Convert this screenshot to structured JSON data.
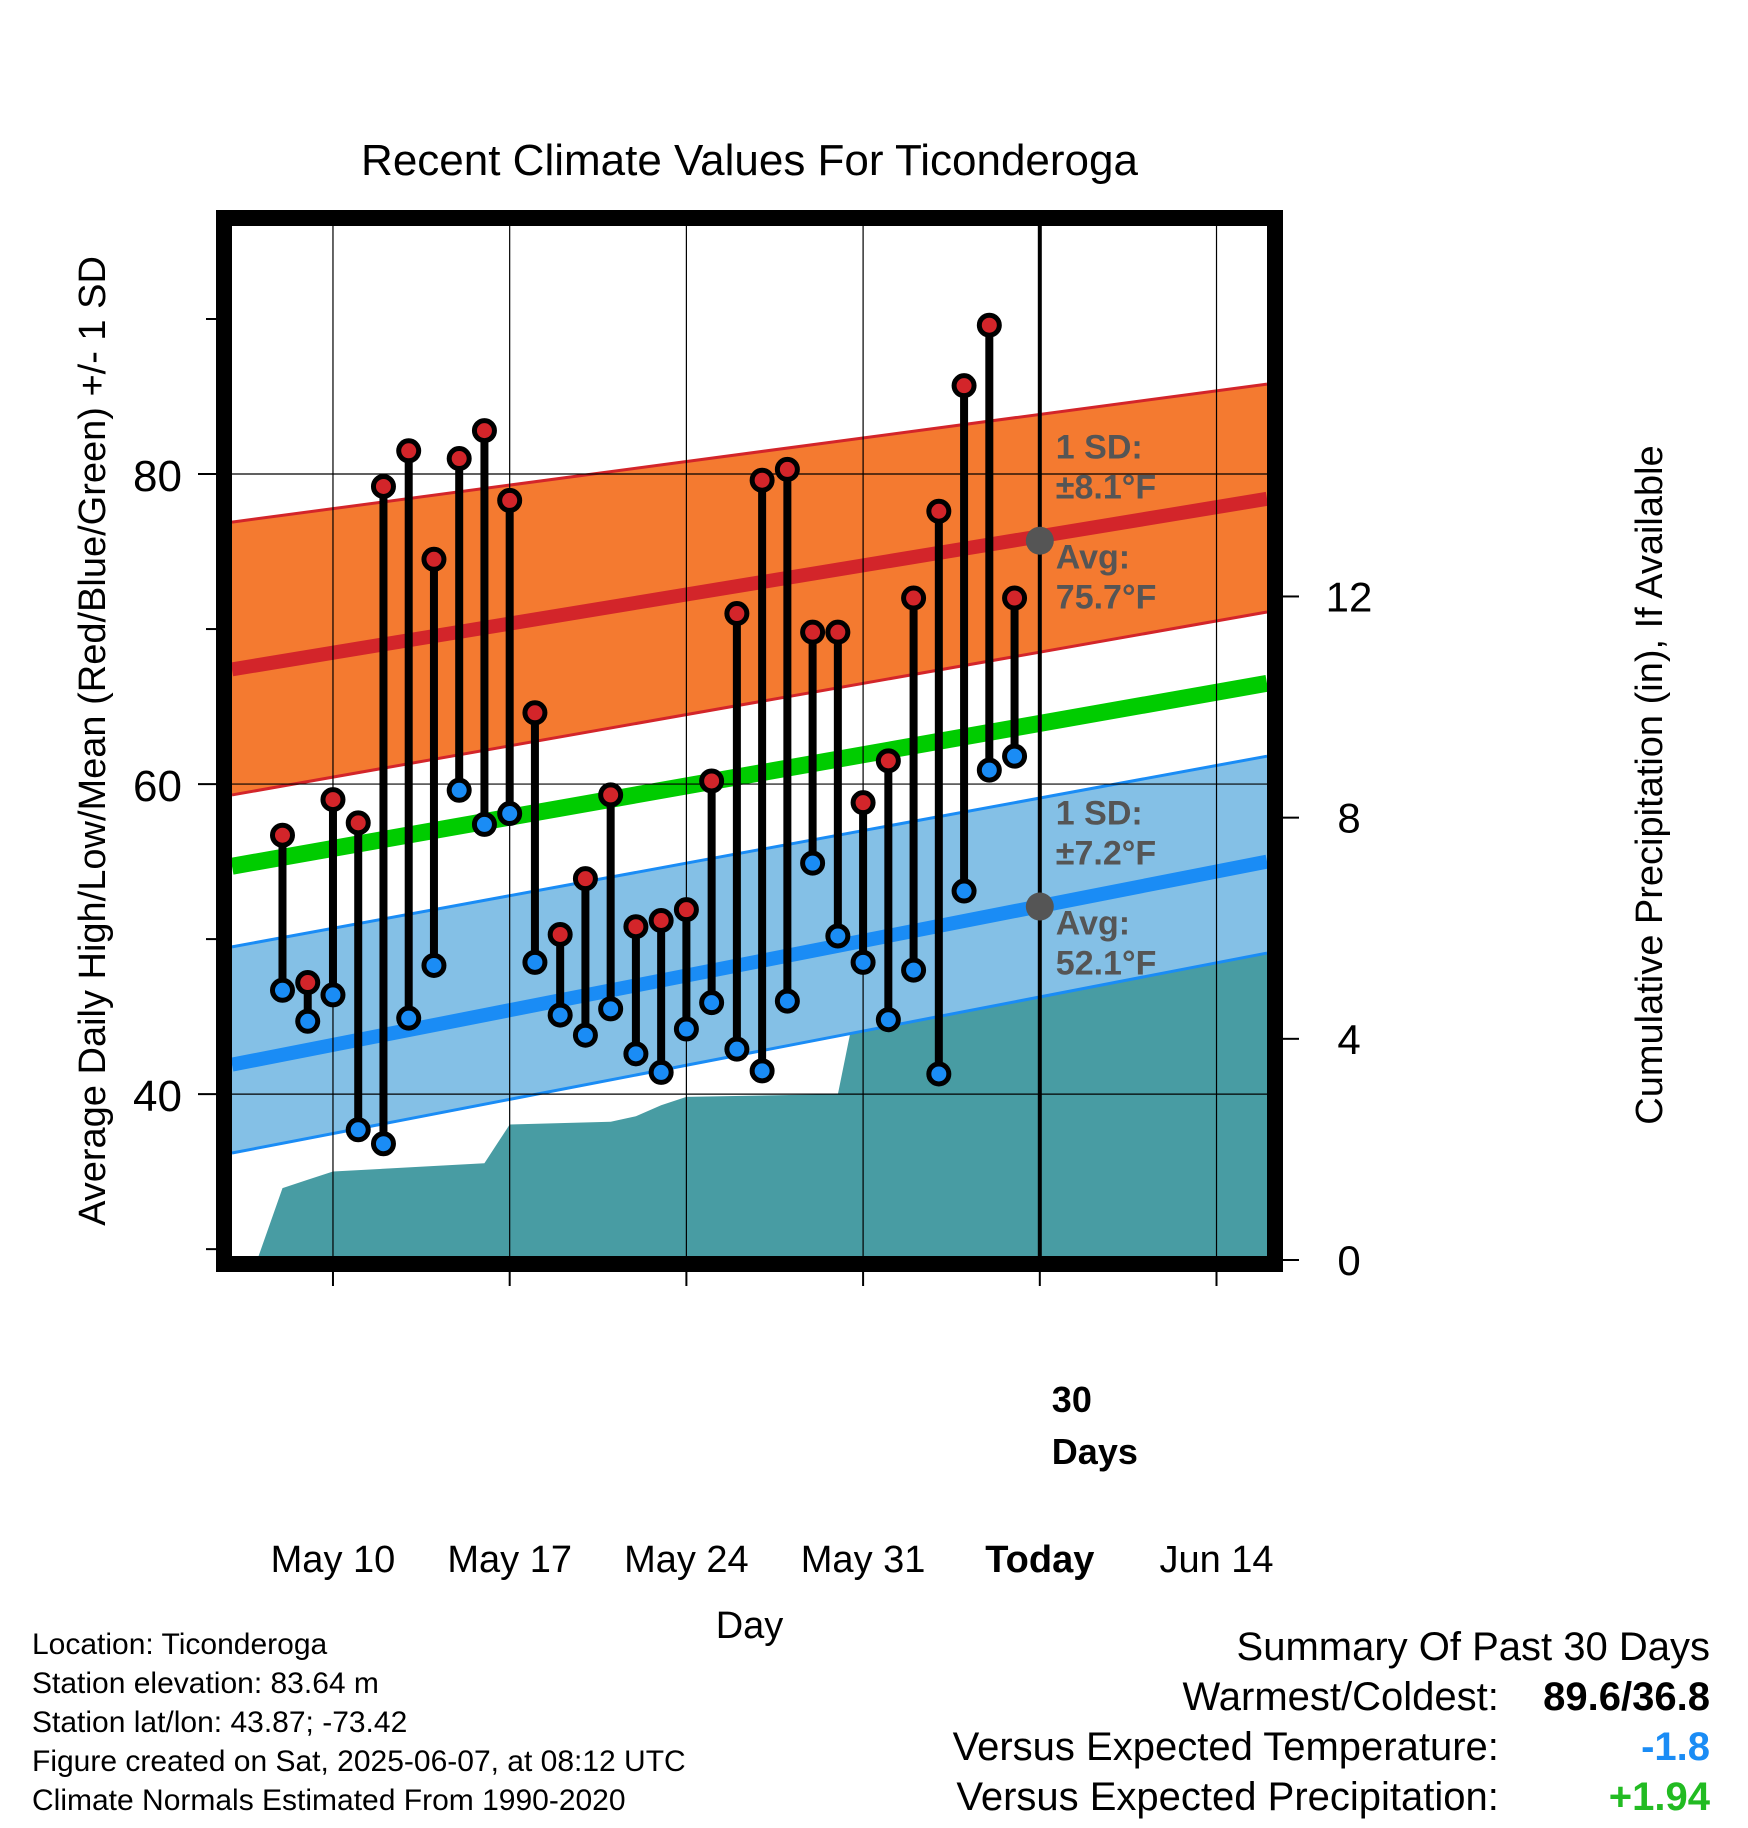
{
  "chart_data": {
    "type": "line",
    "title": "Recent Climate Values For Ticonderoga",
    "xlabel": "Day",
    "ylabel": "Average Daily High/Low/Mean (Red/Blue/Green) +/- 1 SD",
    "y2label": "Cumulative Precipitation (in), If Available",
    "x_range": [
      "2025-05-06",
      "2025-06-16"
    ],
    "x_ticks": [
      {
        "date": "2025-05-10",
        "label": "May 10",
        "bold": false
      },
      {
        "date": "2025-05-17",
        "label": "May 17",
        "bold": false
      },
      {
        "date": "2025-05-24",
        "label": "May 24",
        "bold": false
      },
      {
        "date": "2025-05-31",
        "label": "May 31",
        "bold": false
      },
      {
        "date": "2025-06-07",
        "label": "Today",
        "bold": true
      },
      {
        "date": "2025-06-14",
        "label": "Jun 14",
        "bold": false
      }
    ],
    "ylim": [
      29.3,
      96
    ],
    "y_ticks": [
      40,
      60,
      80
    ],
    "y2lim": [
      0,
      18.7
    ],
    "y2_ticks": [
      0,
      4,
      8,
      12
    ],
    "grid": true,
    "today": "2025-06-07",
    "today_label": "30 Days",
    "normals": {
      "dates": [
        "2025-05-06",
        "2025-06-16"
      ],
      "avg_high": [
        67.4,
        78.4
      ],
      "high_sd_upper": [
        76.9,
        85.8
      ],
      "high_sd_lower": [
        59.3,
        71.1
      ],
      "avg_mean": [
        54.7,
        66.5
      ],
      "avg_low": [
        41.9,
        55.0
      ],
      "low_sd_upper": [
        49.5,
        61.8
      ],
      "low_sd_lower": [
        36.2,
        49.1
      ]
    },
    "annotations": {
      "high_sd": "1 SD:\n±8.1°F",
      "high_avg": "Avg:\n75.7°F",
      "low_sd": "1 SD:\n±7.2°F",
      "low_avg": "Avg:\n52.1°F",
      "today_high_avg": 75.7,
      "today_low_avg": 52.1
    },
    "series": [
      {
        "name": "High",
        "dates": [
          "2025-05-08",
          "2025-05-09",
          "2025-05-10",
          "2025-05-11",
          "2025-05-12",
          "2025-05-13",
          "2025-05-14",
          "2025-05-15",
          "2025-05-16",
          "2025-05-17",
          "2025-05-18",
          "2025-05-19",
          "2025-05-20",
          "2025-05-21",
          "2025-05-22",
          "2025-05-23",
          "2025-05-24",
          "2025-05-25",
          "2025-05-26",
          "2025-05-27",
          "2025-05-28",
          "2025-05-29",
          "2025-05-30",
          "2025-05-31",
          "2025-06-01",
          "2025-06-02",
          "2025-06-03",
          "2025-06-04",
          "2025-06-05",
          "2025-06-06"
        ],
        "values": [
          56.7,
          47.2,
          59.0,
          57.5,
          79.2,
          81.5,
          74.5,
          81.0,
          82.8,
          78.3,
          64.6,
          50.3,
          53.9,
          59.3,
          50.8,
          51.2,
          51.9,
          60.2,
          71.0,
          79.6,
          80.3,
          69.8,
          69.8,
          58.8,
          61.5,
          72.0,
          77.6,
          85.7,
          89.6,
          72.0
        ]
      },
      {
        "name": "Low",
        "dates": [
          "2025-05-08",
          "2025-05-09",
          "2025-05-10",
          "2025-05-11",
          "2025-05-12",
          "2025-05-13",
          "2025-05-14",
          "2025-05-15",
          "2025-05-16",
          "2025-05-17",
          "2025-05-18",
          "2025-05-19",
          "2025-05-20",
          "2025-05-21",
          "2025-05-22",
          "2025-05-23",
          "2025-05-24",
          "2025-05-25",
          "2025-05-26",
          "2025-05-27",
          "2025-05-28",
          "2025-05-29",
          "2025-05-30",
          "2025-05-31",
          "2025-06-01",
          "2025-06-02",
          "2025-06-03",
          "2025-06-04",
          "2025-06-05",
          "2025-06-06"
        ],
        "values": [
          46.7,
          44.7,
          46.4,
          37.7,
          36.8,
          44.9,
          48.3,
          59.6,
          57.4,
          58.1,
          48.5,
          45.1,
          43.8,
          45.5,
          42.6,
          41.4,
          44.2,
          45.9,
          42.9,
          41.5,
          46.0,
          54.9,
          50.2,
          48.5,
          44.8,
          48.0,
          41.3,
          53.1,
          60.9,
          61.8
        ]
      },
      {
        "name": "Cumulative Precipitation",
        "axis": "y2",
        "dates": [
          "2025-05-07",
          "2025-05-08",
          "2025-05-09",
          "2025-05-10",
          "2025-05-16",
          "2025-05-17",
          "2025-05-21",
          "2025-05-22",
          "2025-05-23",
          "2025-05-24",
          "2025-05-30",
          "2025-05-31",
          "2025-06-05",
          "2025-06-06",
          "2025-06-16"
        ],
        "values": [
          0.0,
          1.3,
          1.45,
          1.6,
          1.75,
          2.45,
          2.5,
          2.6,
          2.8,
          2.95,
          3.0,
          5.25,
          5.25,
          5.6,
          5.6
        ]
      }
    ]
  },
  "footer": {
    "location": "Location: Ticonderoga",
    "elevation": "Station elevation: 83.64 m",
    "latlon": "Station lat/lon: 43.87; -73.42",
    "created": "Figure created on Sat, 2025-06-07, at 08:12 UTC",
    "normals": "Climate Normals Estimated From 1990-2020"
  },
  "summary": {
    "title": "Summary Of Past 30 Days",
    "warmest_label": "Warmest/Coldest:",
    "warmest_value": "89.6/36.8",
    "temp_label": "Versus Expected Temperature:",
    "temp_value": "-1.8",
    "precip_label": "Versus Expected Precipitation:",
    "precip_value": "+1.94"
  },
  "colors": {
    "high_band": "#f47a30",
    "high_line": "#d3252a",
    "low_band": "#84c0e6",
    "low_line": "#1a8cf5",
    "mean_line": "#00cc00",
    "precip": "#489ca3",
    "high_dot": "#d3252a",
    "low_dot": "#1a8cf5",
    "annotation": "#555555",
    "temp_value": "#1a8cf5",
    "precip_value": "#22bb22"
  }
}
